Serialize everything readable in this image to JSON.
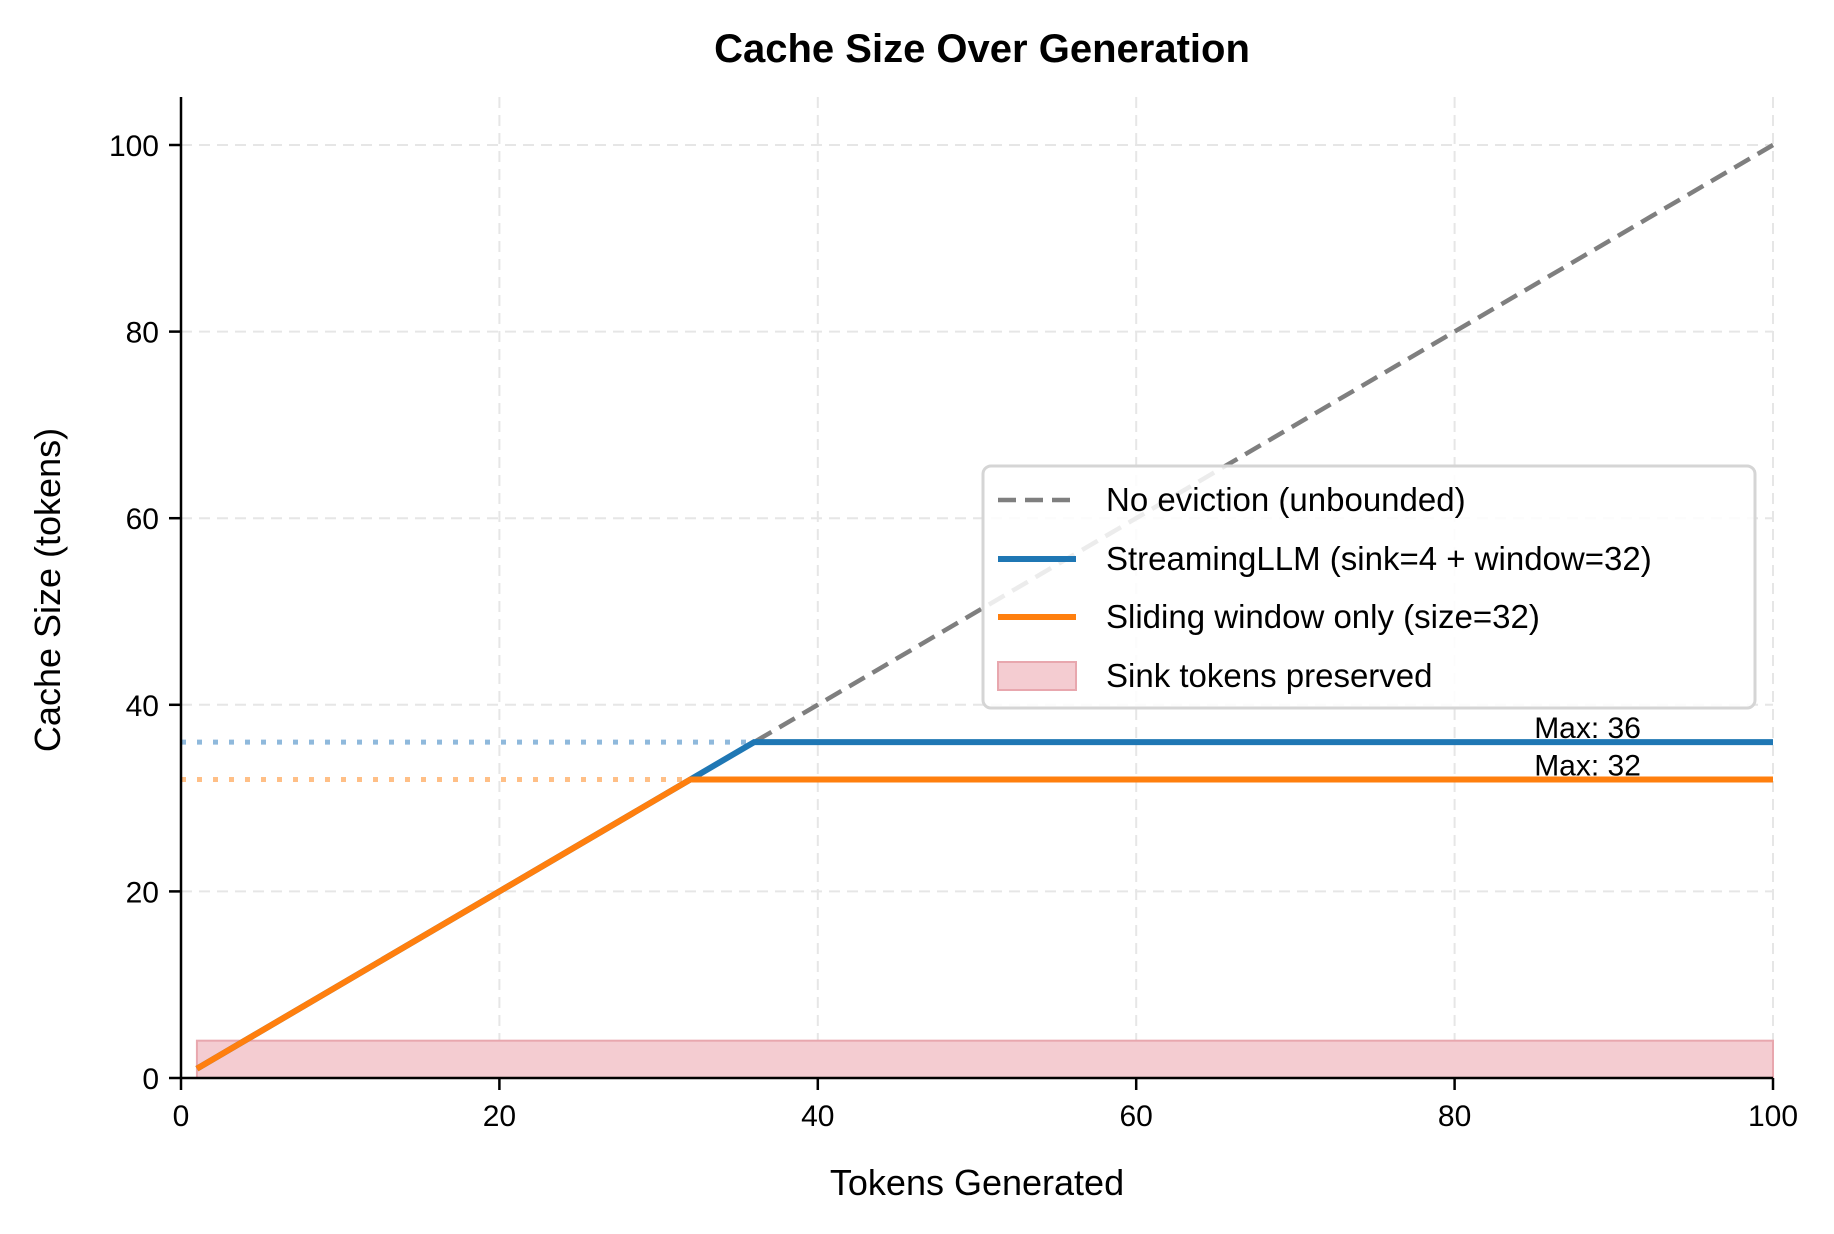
{
  "chart_data": {
    "type": "line",
    "title": "Cache Size Over Generation",
    "xlabel": "Tokens Generated",
    "ylabel": "Cache Size (tokens)",
    "xlim": [
      0,
      100
    ],
    "ylim": [
      0,
      105
    ],
    "xticks": [
      0,
      20,
      40,
      60,
      80,
      100
    ],
    "yticks": [
      0,
      20,
      40,
      60,
      80,
      100
    ],
    "grid": true,
    "legend_position": "center right",
    "series": [
      {
        "name": "No eviction (unbounded)",
        "style": "dashed",
        "color": "#7f7f7f",
        "x": [
          1,
          100
        ],
        "y": [
          1,
          100
        ]
      },
      {
        "name": "StreamingLLM (sink=4 + window=32)",
        "style": "solid",
        "color": "#1f77b4",
        "x": [
          1,
          36,
          100
        ],
        "y": [
          1,
          36,
          36
        ]
      },
      {
        "name": "Sliding window only (size=32)",
        "style": "solid",
        "color": "#ff7f0e",
        "x": [
          1,
          32,
          100
        ],
        "y": [
          1,
          32,
          32
        ]
      },
      {
        "name": "Sink tokens preserved",
        "style": "fill",
        "color": "#f4ccd1",
        "x": [
          1,
          100
        ],
        "y_bottom": 0,
        "y_top": 4
      }
    ],
    "reference_lines": [
      {
        "y": 36,
        "x_range": [
          0,
          36
        ],
        "style": "dotted",
        "color": "#8fb9dc"
      },
      {
        "y": 32,
        "x_range": [
          0,
          32
        ],
        "style": "dotted",
        "color": "#ffbf86"
      }
    ],
    "annotations": [
      {
        "text": "Max: 36",
        "x": 85,
        "y": 37.5,
        "color": "#1f77b4"
      },
      {
        "text": "Max: 32",
        "x": 85,
        "y": 33.5,
        "color": "#ff7f0e"
      }
    ]
  },
  "colors": {
    "no_eviction": "#7f7f7f",
    "streaming": "#1f77b4",
    "sliding": "#ff7f0e",
    "sink_fill": "#f4ccd1",
    "sink_edge": "#e8a7ae",
    "grid": "#e6e6e6",
    "legend_border": "#d5d5d5"
  }
}
